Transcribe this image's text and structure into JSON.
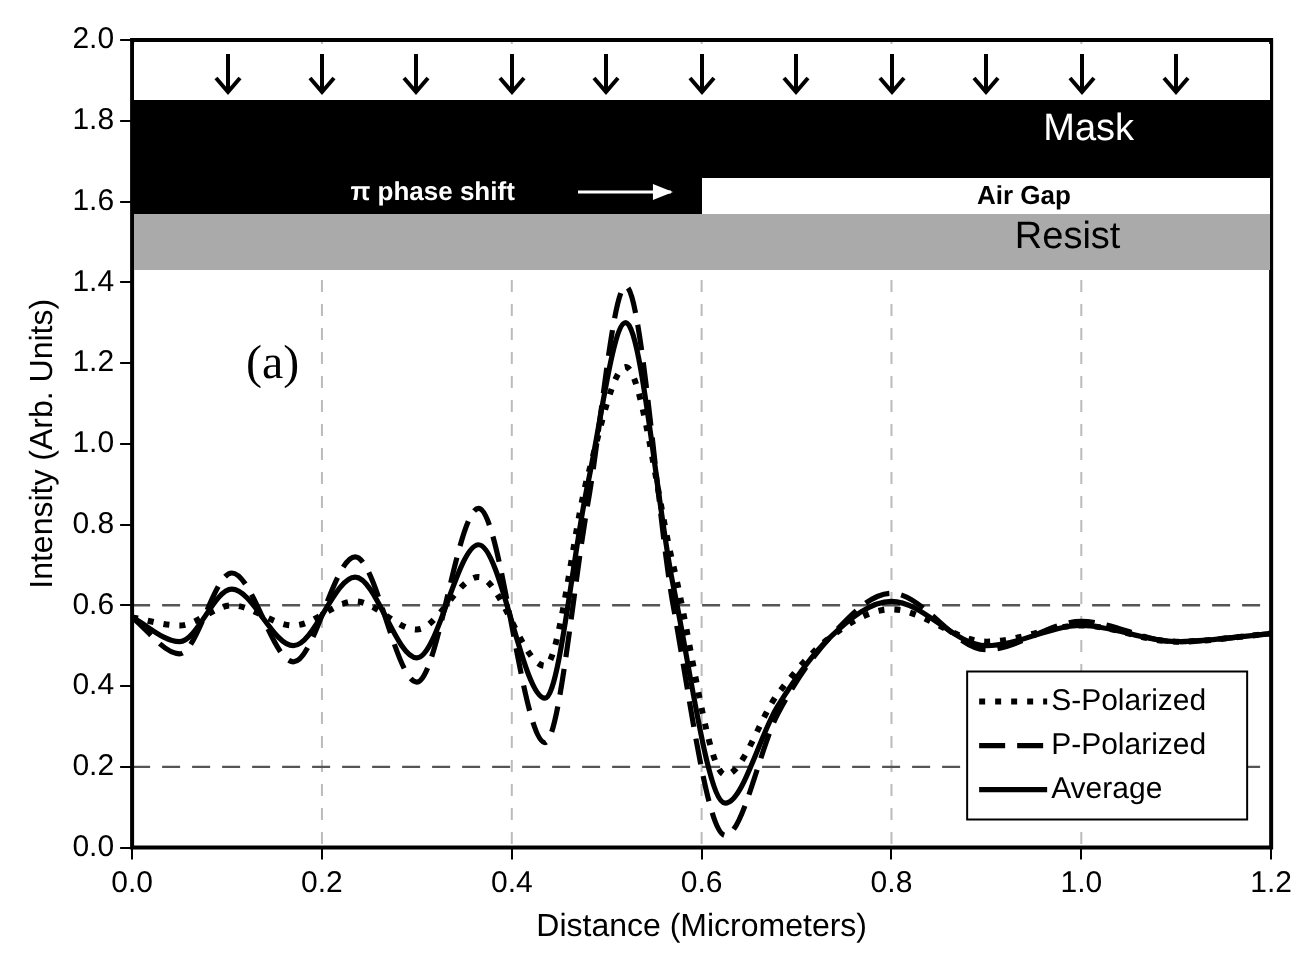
{
  "chart_data": {
    "type": "line",
    "xlabel": "Distance (Micrometers)",
    "ylabel": "Intensity (Arb. Units)",
    "x": [
      0,
      0.05,
      0.105,
      0.17,
      0.235,
      0.3,
      0.365,
      0.435,
      0.48,
      0.52,
      0.57,
      0.625,
      0.68,
      0.735,
      0.8,
      0.9,
      1.0,
      1.1,
      1.2
    ],
    "series": [
      {
        "name": "S-Polarized",
        "color": "#000000",
        "line_style": "dotted",
        "values": [
          0.57,
          0.55,
          0.6,
          0.55,
          0.61,
          0.54,
          0.67,
          0.45,
          0.92,
          1.19,
          0.7,
          0.18,
          0.38,
          0.52,
          0.59,
          0.51,
          0.55,
          0.51,
          0.53
        ]
      },
      {
        "name": "P-Polarized",
        "color": "#000000",
        "line_style": "dashed",
        "values": [
          0.57,
          0.48,
          0.68,
          0.46,
          0.72,
          0.41,
          0.84,
          0.26,
          0.85,
          1.39,
          0.6,
          0.03,
          0.33,
          0.52,
          0.63,
          0.49,
          0.56,
          0.51,
          0.53
        ]
      },
      {
        "name": "Average",
        "color": "#000000",
        "line_style": "solid",
        "values": [
          0.57,
          0.51,
          0.64,
          0.5,
          0.67,
          0.47,
          0.75,
          0.37,
          0.9,
          1.3,
          0.65,
          0.11,
          0.35,
          0.52,
          0.61,
          0.5,
          0.55,
          0.51,
          0.53
        ]
      }
    ],
    "xlim": [
      0,
      1.2
    ],
    "xticks": [
      {
        "value": 0,
        "label": "0.0"
      },
      0.2,
      0.4,
      0.6,
      0.8,
      {
        "value": 1,
        "label": "1.0"
      },
      1.2
    ],
    "ylim": [
      0,
      2
    ],
    "yticks": [
      {
        "value": 0,
        "label": "0.0"
      },
      0.2,
      0.4,
      0.6,
      0.8,
      {
        "value": 1,
        "label": "1.0"
      },
      1.2,
      1.4,
      1.6,
      1.8,
      {
        "value": 2,
        "label": "2.0"
      }
    ],
    "ref_lines": [
      {
        "axis": "y",
        "value": 0.6,
        "color": "#555555",
        "line_style": "dashed"
      },
      {
        "axis": "y",
        "value": 0.2,
        "color": "#555555",
        "line_style": "dashed"
      }
    ],
    "grid": "x",
    "legend": "bottom right",
    "marker": "none",
    "annotations": [
      "(a)",
      "Mask",
      "Air Gap",
      "Resist",
      "π phase shift"
    ]
  }
}
